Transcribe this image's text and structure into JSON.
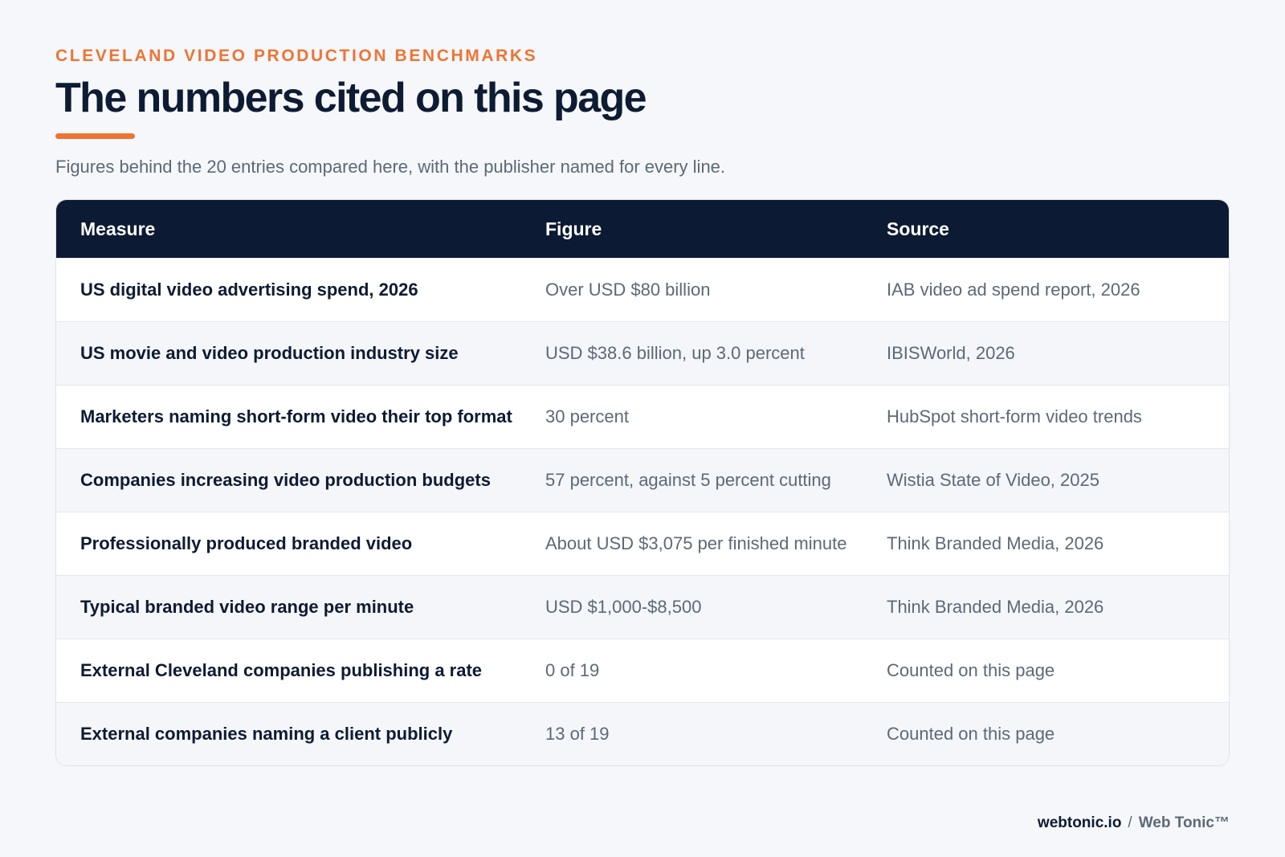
{
  "header": {
    "eyebrow": "CLEVELAND VIDEO PRODUCTION BENCHMARKS",
    "title": "The numbers cited on this page",
    "subtitle": "Figures behind the 20 entries compared here, with the publisher named for every line."
  },
  "table": {
    "columns": [
      "Measure",
      "Figure",
      "Source"
    ],
    "rows": [
      {
        "measure": "US digital video advertising spend, 2026",
        "figure": "Over USD $80 billion",
        "source": "IAB video ad spend report, 2026"
      },
      {
        "measure": "US movie and video production industry size",
        "figure": "USD $38.6 billion, up 3.0 percent",
        "source": "IBISWorld, 2026"
      },
      {
        "measure": "Marketers naming short-form video their top format",
        "figure": "30 percent",
        "source": "HubSpot short-form video trends"
      },
      {
        "measure": "Companies increasing video production budgets",
        "figure": "57 percent, against 5 percent cutting",
        "source": "Wistia State of Video, 2025"
      },
      {
        "measure": "Professionally produced branded video",
        "figure": "About USD $3,075 per finished minute",
        "source": "Think Branded Media, 2026"
      },
      {
        "measure": "Typical branded video range per minute",
        "figure": "USD $1,000-$8,500",
        "source": "Think Branded Media, 2026"
      },
      {
        "measure": "External Cleveland companies publishing a rate",
        "figure": "0 of 19",
        "source": "Counted on this page"
      },
      {
        "measure": "External companies naming a client publicly",
        "figure": "13 of 19",
        "source": "Counted on this page"
      }
    ]
  },
  "footer": {
    "domain": "webtonic.io",
    "separator": "/",
    "brand": "Web Tonic™"
  },
  "colors": {
    "accent": "#ee7434",
    "navy": "#0c1a33",
    "background": "#f5f7fa",
    "muted_text": "#5d6878"
  }
}
